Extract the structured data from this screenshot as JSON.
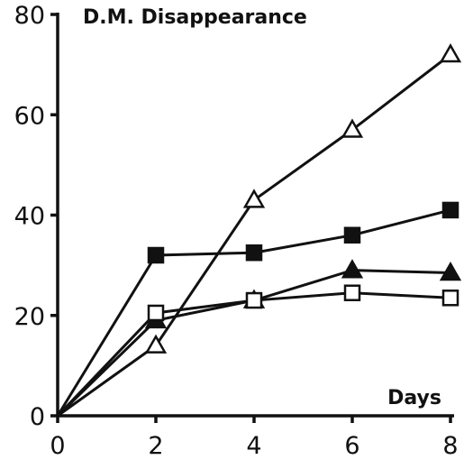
{
  "chart_data": {
    "type": "line",
    "title": "D.M. Disappearance",
    "xlabel": "Days",
    "ylabel": "",
    "xlim": [
      0,
      8
    ],
    "ylim": [
      0,
      80
    ],
    "x_ticks": [
      0,
      2,
      4,
      6,
      8
    ],
    "y_ticks": [
      0,
      20,
      40,
      60,
      80
    ],
    "grid": false,
    "legend": "none",
    "series": [
      {
        "marker": "open-triangle",
        "color": "#111111",
        "points": [
          [
            0,
            0
          ],
          [
            2,
            14
          ],
          [
            4,
            43
          ],
          [
            6,
            57
          ],
          [
            8,
            72
          ]
        ]
      },
      {
        "marker": "filled-square",
        "color": "#111111",
        "points": [
          [
            0,
            0
          ],
          [
            2,
            32
          ],
          [
            4,
            32.5
          ],
          [
            6,
            36
          ],
          [
            8,
            41
          ]
        ]
      },
      {
        "marker": "filled-triangle",
        "color": "#111111",
        "points": [
          [
            0,
            0
          ],
          [
            2,
            19
          ],
          [
            4,
            23
          ],
          [
            6,
            29
          ],
          [
            8,
            28.5
          ]
        ]
      },
      {
        "marker": "open-square",
        "color": "#111111",
        "points": [
          [
            0,
            0
          ],
          [
            2,
            20.5
          ],
          [
            4,
            23
          ],
          [
            6,
            24.5
          ],
          [
            8,
            23.5
          ]
        ]
      }
    ]
  }
}
